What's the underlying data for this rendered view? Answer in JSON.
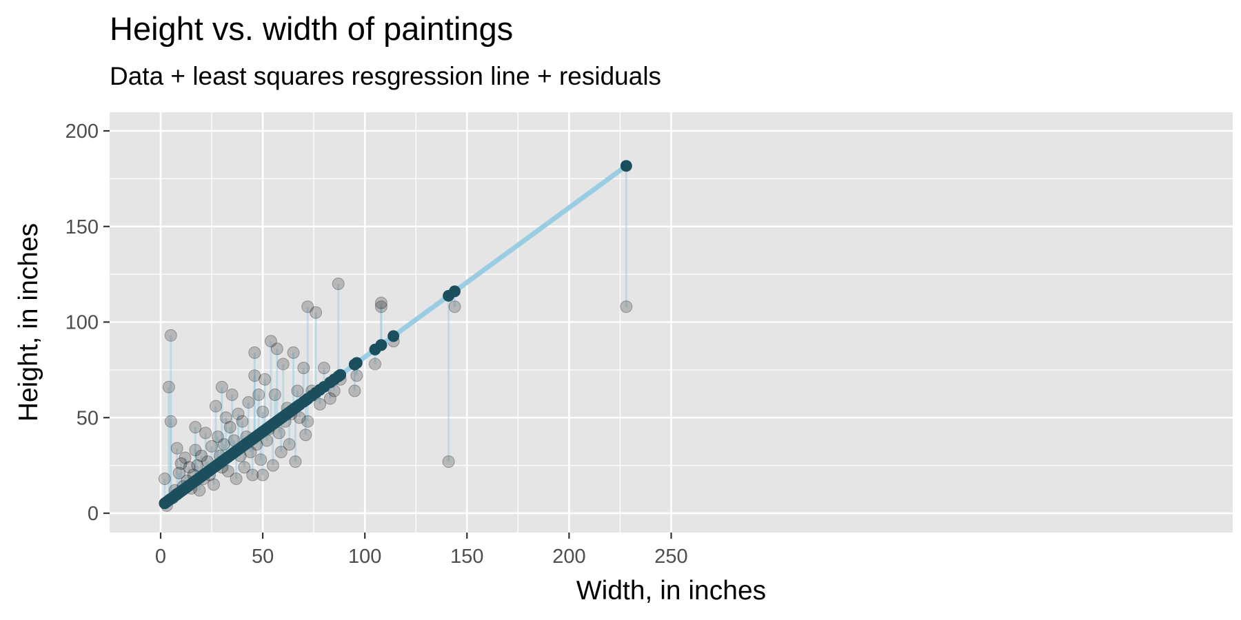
{
  "chart_data": {
    "type": "scatter",
    "title": "Height vs. width of paintings",
    "subtitle": "Data + least squares resgression line + residuals",
    "xlabel": "Width, in inches",
    "ylabel": "Height, in inches",
    "xlim": [
      -12.5,
      262
    ],
    "ylim": [
      -10,
      210
    ],
    "x_ticks": [
      0,
      50,
      100,
      150,
      200,
      250
    ],
    "y_ticks": [
      0,
      50,
      100,
      150,
      200
    ],
    "grid": true,
    "regression": {
      "intercept": 3.62,
      "slope": 0.781
    },
    "colors": {
      "panel": "#e5e5e5",
      "grid": "#ffffff",
      "observed_point": "#000000",
      "fitted_point": "#1c4f5e",
      "regression_line": "#99cde3",
      "residual_segment": "#99cde3"
    },
    "points": [
      [
        2,
        18
      ],
      [
        3,
        4
      ],
      [
        4,
        66
      ],
      [
        5,
        48
      ],
      [
        5,
        93
      ],
      [
        6,
        8
      ],
      [
        7,
        12
      ],
      [
        8,
        34
      ],
      [
        8,
        10
      ],
      [
        9,
        21
      ],
      [
        10,
        26
      ],
      [
        11,
        14
      ],
      [
        12,
        29
      ],
      [
        13,
        17
      ],
      [
        14,
        24
      ],
      [
        15,
        13
      ],
      [
        16,
        20
      ],
      [
        17,
        45
      ],
      [
        17,
        33
      ],
      [
        18,
        25
      ],
      [
        19,
        12
      ],
      [
        20,
        30
      ],
      [
        21,
        18
      ],
      [
        22,
        42
      ],
      [
        23,
        27
      ],
      [
        24,
        20
      ],
      [
        25,
        35
      ],
      [
        26,
        15
      ],
      [
        27,
        56
      ],
      [
        28,
        40
      ],
      [
        29,
        30
      ],
      [
        30,
        66
      ],
      [
        30,
        24
      ],
      [
        31,
        36
      ],
      [
        32,
        50
      ],
      [
        33,
        22
      ],
      [
        34,
        45
      ],
      [
        35,
        62
      ],
      [
        36,
        38
      ],
      [
        37,
        18
      ],
      [
        38,
        52
      ],
      [
        39,
        30
      ],
      [
        40,
        48
      ],
      [
        41,
        24
      ],
      [
        42,
        40
      ],
      [
        43,
        58
      ],
      [
        44,
        32
      ],
      [
        45,
        20
      ],
      [
        46,
        72
      ],
      [
        46,
        84
      ],
      [
        47,
        36
      ],
      [
        48,
        62
      ],
      [
        49,
        28
      ],
      [
        50,
        53
      ],
      [
        50,
        20
      ],
      [
        51,
        70
      ],
      [
        52,
        38
      ],
      [
        53,
        44
      ],
      [
        54,
        90
      ],
      [
        55,
        25
      ],
      [
        56,
        62
      ],
      [
        57,
        86
      ],
      [
        58,
        42
      ],
      [
        59,
        32
      ],
      [
        60,
        78
      ],
      [
        61,
        48
      ],
      [
        62,
        55
      ],
      [
        63,
        36
      ],
      [
        64,
        52
      ],
      [
        65,
        84
      ],
      [
        66,
        27
      ],
      [
        67,
        64
      ],
      [
        68,
        50
      ],
      [
        70,
        76
      ],
      [
        71,
        41
      ],
      [
        72,
        108
      ],
      [
        72,
        48
      ],
      [
        74,
        64
      ],
      [
        76,
        105
      ],
      [
        78,
        57
      ],
      [
        80,
        76
      ],
      [
        83,
        60
      ],
      [
        85,
        64
      ],
      [
        87,
        120
      ],
      [
        88,
        70
      ],
      [
        95,
        64
      ],
      [
        96,
        72
      ],
      [
        105,
        78
      ],
      [
        108,
        108
      ],
      [
        108,
        110
      ],
      [
        114,
        90
      ],
      [
        141,
        27
      ],
      [
        144,
        108
      ],
      [
        228,
        108
      ]
    ]
  }
}
